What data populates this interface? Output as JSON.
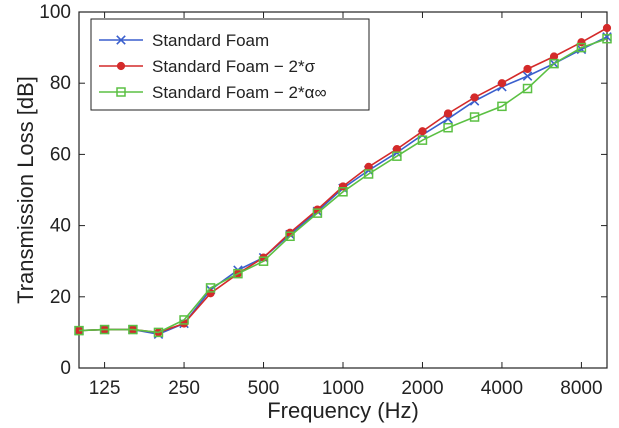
{
  "chart_data": {
    "type": "line",
    "xlabel": "Frequency (Hz)",
    "ylabel": "Transmission Loss [dB]",
    "x_scale": "log",
    "xlim": [
      100,
      10000
    ],
    "ylim": [
      0,
      100
    ],
    "x_ticks": [
      125,
      250,
      500,
      1000,
      2000,
      4000,
      8000
    ],
    "x_tick_labels": [
      "125",
      "250",
      "500",
      "1000",
      "2000",
      "4000",
      "8000"
    ],
    "y_ticks": [
      0,
      20,
      40,
      60,
      80,
      100
    ],
    "y_tick_labels": [
      "0",
      "20",
      "40",
      "60",
      "80",
      "100"
    ],
    "grid": false,
    "legend_position": "top-left",
    "x": [
      100,
      125,
      160,
      200,
      250,
      315,
      400,
      500,
      630,
      800,
      1000,
      1250,
      1600,
      2000,
      2500,
      3150,
      4000,
      5000,
      6300,
      8000,
      10000
    ],
    "series": [
      {
        "name": "Standard Foam",
        "color": "#3a5fcd",
        "marker": "x",
        "values": [
          10.5,
          10.8,
          10.8,
          9.5,
          12.5,
          22,
          27.5,
          31,
          37.5,
          44,
          50.5,
          55.5,
          60.5,
          65.5,
          70,
          75,
          79,
          82,
          85.5,
          89.5,
          93
        ]
      },
      {
        "name": "Standard Foam − 2*σ",
        "color": "#d42a2a",
        "marker": "circle",
        "values": [
          10.5,
          10.8,
          10.8,
          10,
          12.5,
          21,
          26.5,
          31,
          38,
          44.5,
          51,
          56.5,
          61.5,
          66.5,
          71.5,
          76,
          80,
          84,
          87.5,
          91.5,
          95.5
        ]
      },
      {
        "name": "Standard Foam − 2*α∞",
        "color": "#5bc043",
        "marker": "square",
        "values": [
          10.5,
          10.8,
          10.8,
          10,
          13.5,
          22.5,
          26.5,
          30,
          37,
          43.5,
          49.5,
          54.5,
          59.5,
          64,
          67.5,
          70.5,
          73.5,
          78.5,
          85.5,
          90,
          92.5
        ]
      }
    ]
  }
}
